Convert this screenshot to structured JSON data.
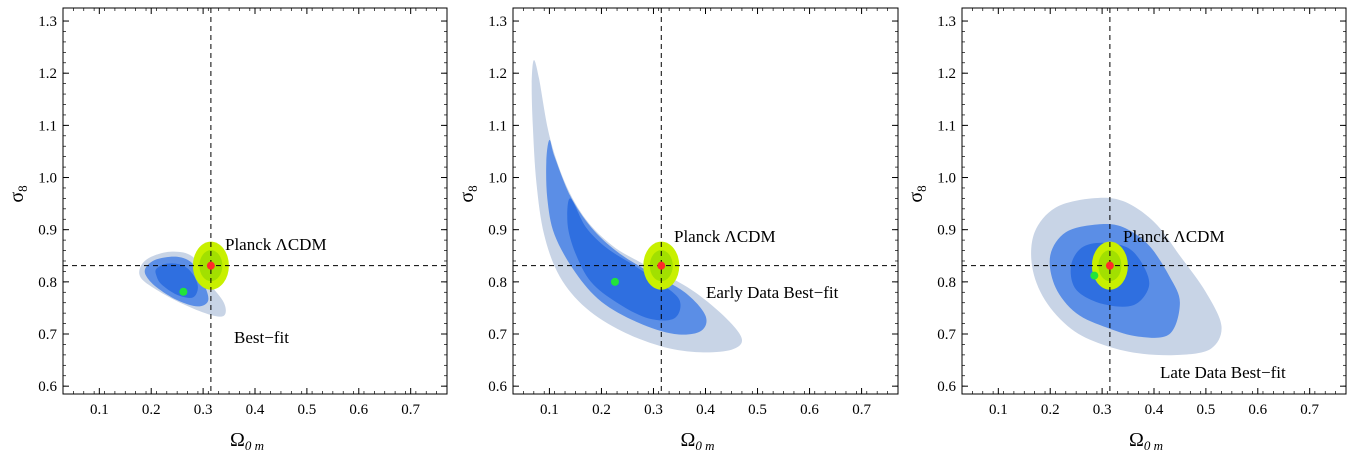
{
  "chart_data": [
    {
      "type": "contour",
      "xlabel": "Ω",
      "xlabel_sub": "0 m",
      "ylabel": "σ",
      "ylabel_sub": "8",
      "xlim": [
        0.03,
        0.77
      ],
      "ylim": [
        0.585,
        1.325
      ],
      "xticks": [
        "0.1",
        "0.2",
        "0.3",
        "0.4",
        "0.5",
        "0.6",
        "0.7"
      ],
      "yticks": [
        "0.6",
        "0.7",
        "0.8",
        "0.9",
        "1.0",
        "1.1",
        "1.2",
        "1.3"
      ],
      "reference_lines": {
        "x": 0.315,
        "y": 0.831
      },
      "planck_point": {
        "x": 0.315,
        "y": 0.831,
        "label": "Planck ΛCDM"
      },
      "best_fit_point": {
        "x": 0.262,
        "y": 0.781,
        "label": "Best−fit"
      },
      "contours": [
        {
          "level": "3σ",
          "color": "#c8d4e6",
          "points": [
            [
              0.18,
              0.83
            ],
            [
              0.2,
              0.848
            ],
            [
              0.24,
              0.858
            ],
            [
              0.28,
              0.848
            ],
            [
              0.31,
              0.8
            ],
            [
              0.34,
              0.76
            ],
            [
              0.34,
              0.735
            ],
            [
              0.31,
              0.738
            ],
            [
              0.26,
              0.758
            ],
            [
              0.21,
              0.785
            ],
            [
              0.18,
              0.808
            ]
          ]
        },
        {
          "level": "2σ",
          "color": "#5b8ee6",
          "points": [
            [
              0.19,
              0.828
            ],
            [
              0.21,
              0.843
            ],
            [
              0.25,
              0.848
            ],
            [
              0.28,
              0.835
            ],
            [
              0.3,
              0.8
            ],
            [
              0.31,
              0.765
            ],
            [
              0.29,
              0.753
            ],
            [
              0.25,
              0.765
            ],
            [
              0.21,
              0.79
            ],
            [
              0.19,
              0.812
            ]
          ]
        },
        {
          "level": "1σ",
          "color": "#2f6fe0",
          "points": [
            [
              0.21,
              0.825
            ],
            [
              0.23,
              0.835
            ],
            [
              0.26,
              0.832
            ],
            [
              0.28,
              0.815
            ],
            [
              0.29,
              0.79
            ],
            [
              0.28,
              0.77
            ],
            [
              0.25,
              0.775
            ],
            [
              0.22,
              0.795
            ],
            [
              0.21,
              0.812
            ]
          ]
        }
      ]
    },
    {
      "type": "contour",
      "xlabel": "Ω",
      "xlabel_sub": "0 m",
      "ylabel": "σ",
      "ylabel_sub": "8",
      "xlim": [
        0.03,
        0.77
      ],
      "ylim": [
        0.585,
        1.325
      ],
      "xticks": [
        "0.1",
        "0.2",
        "0.3",
        "0.4",
        "0.5",
        "0.6",
        "0.7"
      ],
      "yticks": [
        "0.6",
        "0.7",
        "0.8",
        "0.9",
        "1.0",
        "1.1",
        "1.2",
        "1.3"
      ],
      "reference_lines": {
        "x": 0.315,
        "y": 0.831
      },
      "planck_point": {
        "x": 0.315,
        "y": 0.831,
        "label": "Planck ΛCDM"
      },
      "best_fit_point": {
        "x": 0.226,
        "y": 0.8,
        "label": "Early Data Best−fit"
      },
      "contours": [
        {
          "level": "3σ",
          "color": "#c8d4e6",
          "points": [
            [
              0.07,
              1.225
            ],
            [
              0.08,
              1.19
            ],
            [
              0.1,
              1.08
            ],
            [
              0.13,
              0.99
            ],
            [
              0.17,
              0.92
            ],
            [
              0.22,
              0.87
            ],
            [
              0.27,
              0.84
            ],
            [
              0.32,
              0.815
            ],
            [
              0.38,
              0.78
            ],
            [
              0.44,
              0.73
            ],
            [
              0.47,
              0.69
            ],
            [
              0.45,
              0.67
            ],
            [
              0.39,
              0.665
            ],
            [
              0.32,
              0.675
            ],
            [
              0.24,
              0.705
            ],
            [
              0.17,
              0.75
            ],
            [
              0.12,
              0.81
            ],
            [
              0.09,
              0.89
            ],
            [
              0.075,
              0.99
            ],
            [
              0.068,
              1.1
            ],
            [
              0.066,
              1.18
            ]
          ]
        },
        {
          "level": "2σ",
          "color": "#5b8ee6",
          "points": [
            [
              0.1,
              1.072
            ],
            [
              0.11,
              1.04
            ],
            [
              0.14,
              0.965
            ],
            [
              0.18,
              0.905
            ],
            [
              0.23,
              0.858
            ],
            [
              0.29,
              0.82
            ],
            [
              0.36,
              0.78
            ],
            [
              0.4,
              0.735
            ],
            [
              0.39,
              0.705
            ],
            [
              0.34,
              0.7
            ],
            [
              0.27,
              0.722
            ],
            [
              0.2,
              0.762
            ],
            [
              0.15,
              0.818
            ],
            [
              0.11,
              0.89
            ],
            [
              0.096,
              0.96
            ],
            [
              0.094,
              1.03
            ]
          ]
        },
        {
          "level": "1σ",
          "color": "#2f6fe0",
          "points": [
            [
              0.14,
              0.96
            ],
            [
              0.17,
              0.905
            ],
            [
              0.21,
              0.865
            ],
            [
              0.26,
              0.833
            ],
            [
              0.31,
              0.8
            ],
            [
              0.35,
              0.765
            ],
            [
              0.34,
              0.73
            ],
            [
              0.29,
              0.73
            ],
            [
              0.23,
              0.76
            ],
            [
              0.18,
              0.8
            ],
            [
              0.15,
              0.855
            ],
            [
              0.135,
              0.91
            ]
          ]
        }
      ]
    },
    {
      "type": "contour",
      "xlabel": "Ω",
      "xlabel_sub": "0 m",
      "ylabel": "σ",
      "ylabel_sub": "8",
      "xlim": [
        0.03,
        0.77
      ],
      "ylim": [
        0.585,
        1.325
      ],
      "xticks": [
        "0.1",
        "0.2",
        "0.3",
        "0.4",
        "0.5",
        "0.6",
        "0.7"
      ],
      "yticks": [
        "0.6",
        "0.7",
        "0.8",
        "0.9",
        "1.0",
        "1.1",
        "1.2",
        "1.3"
      ],
      "reference_lines": {
        "x": 0.315,
        "y": 0.831
      },
      "planck_point": {
        "x": 0.315,
        "y": 0.831,
        "label": "Planck ΛCDM"
      },
      "best_fit_point": {
        "x": 0.285,
        "y": 0.812,
        "label": "Late Data Best−fit"
      },
      "contours": [
        {
          "level": "3σ",
          "color": "#c8d4e6",
          "points": [
            [
              0.28,
              0.96
            ],
            [
              0.34,
              0.955
            ],
            [
              0.4,
              0.915
            ],
            [
              0.45,
              0.85
            ],
            [
              0.5,
              0.78
            ],
            [
              0.53,
              0.715
            ],
            [
              0.51,
              0.672
            ],
            [
              0.45,
              0.66
            ],
            [
              0.37,
              0.663
            ],
            [
              0.3,
              0.68
            ],
            [
              0.24,
              0.71
            ],
            [
              0.19,
              0.765
            ],
            [
              0.165,
              0.83
            ],
            [
              0.17,
              0.895
            ],
            [
              0.21,
              0.942
            ]
          ]
        },
        {
          "level": "2σ",
          "color": "#5b8ee6",
          "points": [
            [
              0.29,
              0.91
            ],
            [
              0.34,
              0.905
            ],
            [
              0.39,
              0.87
            ],
            [
              0.43,
              0.81
            ],
            [
              0.45,
              0.76
            ],
            [
              0.43,
              0.7
            ],
            [
              0.37,
              0.695
            ],
            [
              0.31,
              0.712
            ],
            [
              0.25,
              0.74
            ],
            [
              0.21,
              0.79
            ],
            [
              0.2,
              0.85
            ],
            [
              0.23,
              0.895
            ]
          ]
        },
        {
          "level": "1σ",
          "color": "#2f6fe0",
          "points": [
            [
              0.3,
              0.875
            ],
            [
              0.35,
              0.865
            ],
            [
              0.38,
              0.83
            ],
            [
              0.39,
              0.79
            ],
            [
              0.36,
              0.755
            ],
            [
              0.3,
              0.758
            ],
            [
              0.25,
              0.785
            ],
            [
              0.24,
              0.83
            ],
            [
              0.26,
              0.865
            ]
          ]
        }
      ]
    }
  ]
}
